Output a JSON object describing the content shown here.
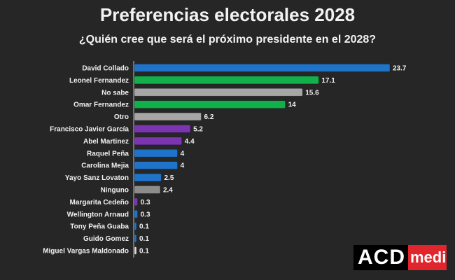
{
  "chart_data": {
    "type": "bar",
    "orientation": "horizontal",
    "title": "Preferencias electorales 2028",
    "subtitle": "¿Quién cree que será el próximo presidente en el 2028?",
    "xlabel": "",
    "ylabel": "",
    "xlim": [
      0,
      24
    ],
    "grid": false,
    "categories": [
      "David Collado",
      "Leonel Fernandez",
      "No sabe",
      "Omar Fernandez",
      "Otro",
      "Francisco Javier García",
      "Abel Martinez",
      "Raquel Peña",
      "Carolina Mejia",
      "Yayo Sanz Lovaton",
      "Ninguno",
      "Margarita Cedeño",
      "Wellington Arnaud",
      "Tony Peña Guaba",
      "Guido Gomez",
      "Miguel Vargas Maldonado"
    ],
    "values": [
      23.7,
      17.1,
      15.6,
      14,
      6.2,
      5.2,
      4.4,
      4,
      4,
      2.5,
      2.4,
      0.3,
      0.3,
      0.1,
      0.1,
      0.1
    ],
    "value_labels": [
      "23.7",
      "17.1",
      "15.6",
      "14",
      "6.2",
      "5.2",
      "4.4",
      "4",
      "4",
      "2.5",
      "2.4",
      "0.3",
      "0.3",
      "0.1",
      "0.1",
      "0.1"
    ],
    "colors": [
      "#1f74c9",
      "#12b04a",
      "#a6a6a6",
      "#12b04a",
      "#a6a6a6",
      "#7b35b0",
      "#7b35b0",
      "#1f74c9",
      "#1f74c9",
      "#1f74c9",
      "#8c8c8c",
      "#7b35b0",
      "#1f74c9",
      "#1f74c9",
      "#1f74c9",
      "#d9d9d9"
    ]
  },
  "logo": {
    "part1": "ACD",
    "part2": "media"
  }
}
